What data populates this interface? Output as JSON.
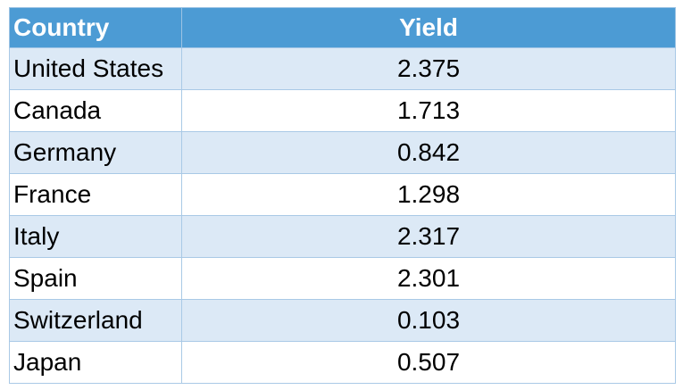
{
  "chart_data": {
    "type": "table",
    "columns": [
      "Country",
      "Yield"
    ],
    "rows": [
      {
        "country": "United States",
        "yield": "2.375"
      },
      {
        "country": "Canada",
        "yield": "1.713"
      },
      {
        "country": "Germany",
        "yield": "0.842"
      },
      {
        "country": "France",
        "yield": "1.298"
      },
      {
        "country": "Italy",
        "yield": "2.317"
      },
      {
        "country": "Spain",
        "yield": "2.301"
      },
      {
        "country": "Switzerland",
        "yield": "0.103"
      },
      {
        "country": "Japan",
        "yield": "0.507"
      }
    ]
  },
  "colors": {
    "header_background": "#4c9bd4",
    "header_text": "#ffffff",
    "band_background": "#dce9f6",
    "plain_background": "#ffffff",
    "grid_line": "#a9c9e6"
  }
}
